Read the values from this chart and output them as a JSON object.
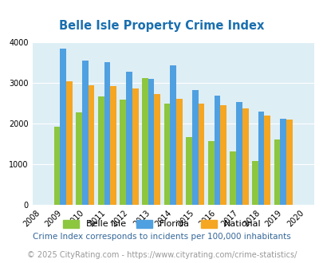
{
  "title": "Belle Isle Property Crime Index",
  "years": [
    2008,
    2009,
    2010,
    2011,
    2012,
    2013,
    2014,
    2015,
    2016,
    2017,
    2018,
    2019,
    2020
  ],
  "belle_isle": [
    null,
    1930,
    2270,
    2670,
    2580,
    3110,
    2490,
    1660,
    1580,
    1310,
    1080,
    1620,
    null
  ],
  "florida": [
    null,
    3840,
    3550,
    3510,
    3270,
    3100,
    3420,
    2820,
    2680,
    2530,
    2290,
    2120,
    null
  ],
  "national": [
    null,
    3040,
    2950,
    2920,
    2860,
    2730,
    2600,
    2500,
    2460,
    2370,
    2190,
    2100,
    null
  ],
  "bar_width": 0.28,
  "ylim": [
    0,
    4000
  ],
  "yticks": [
    0,
    1000,
    2000,
    3000,
    4000
  ],
  "color_belle_isle": "#8dc63f",
  "color_florida": "#4fa0e0",
  "color_national": "#f5a623",
  "bg_color": "#deeef5",
  "title_color": "#1a6faf",
  "title_fontsize": 10.5,
  "legend_labels": [
    "Belle Isle",
    "Florida",
    "National"
  ],
  "note": "Crime Index corresponds to incidents per 100,000 inhabitants",
  "copyright": "© 2025 CityRating.com - https://www.cityrating.com/crime-statistics/",
  "note_color": "#336699",
  "copyright_color": "#999999",
  "note_fontsize": 7.5,
  "copyright_fontsize": 7.0
}
